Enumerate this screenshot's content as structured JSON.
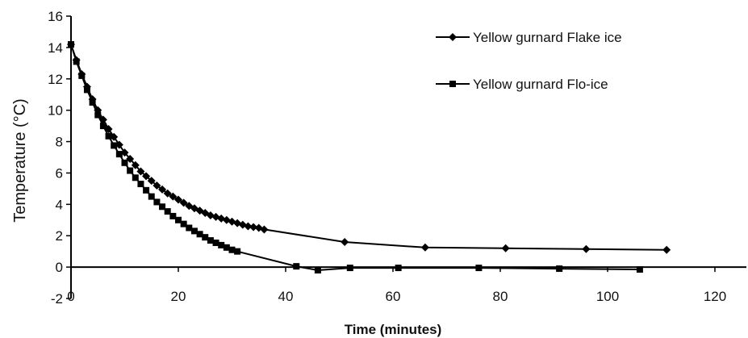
{
  "chart_data": {
    "type": "line",
    "title": "",
    "xlabel": "Time (minutes)",
    "ylabel": "Temperature (°C)",
    "xlim": [
      0,
      120
    ],
    "ylim": [
      -2,
      16
    ],
    "xticks": [
      "0",
      "20",
      "40",
      "60",
      "80",
      "100",
      "120"
    ],
    "yticks": [
      "-2",
      "0",
      "2",
      "4",
      "6",
      "8",
      "10",
      "12",
      "14",
      "16"
    ],
    "grid": false,
    "legend_position": "top-right",
    "series": [
      {
        "name": "Yellow gurnard Flake ice",
        "marker": "diamond",
        "color": "#000000",
        "x": [
          0,
          1,
          2,
          3,
          4,
          5,
          6,
          7,
          8,
          9,
          10,
          11,
          12,
          13,
          14,
          15,
          16,
          17,
          18,
          19,
          20,
          21,
          22,
          23,
          24,
          25,
          26,
          27,
          28,
          29,
          30,
          31,
          32,
          33,
          34,
          35,
          36,
          51,
          66,
          81,
          96,
          111
        ],
        "y": [
          14.2,
          13.2,
          12.3,
          11.5,
          10.7,
          10.0,
          9.4,
          8.8,
          8.3,
          7.8,
          7.3,
          6.9,
          6.5,
          6.1,
          5.8,
          5.5,
          5.2,
          4.95,
          4.7,
          4.5,
          4.3,
          4.1,
          3.9,
          3.75,
          3.6,
          3.45,
          3.3,
          3.2,
          3.1,
          3.0,
          2.9,
          2.8,
          2.7,
          2.6,
          2.55,
          2.5,
          2.4,
          1.6,
          1.25,
          1.2,
          1.15,
          1.1
        ]
      },
      {
        "name": "Yellow gurnard Flo-ice",
        "marker": "square",
        "color": "#000000",
        "x": [
          0,
          1,
          2,
          3,
          4,
          5,
          6,
          7,
          8,
          9,
          10,
          11,
          12,
          13,
          14,
          15,
          16,
          17,
          18,
          19,
          20,
          21,
          22,
          23,
          24,
          25,
          26,
          27,
          28,
          29,
          30,
          31,
          42,
          46,
          52,
          61,
          76,
          91,
          106
        ],
        "y": [
          14.2,
          13.1,
          12.2,
          11.3,
          10.5,
          9.7,
          9.0,
          8.35,
          7.75,
          7.2,
          6.65,
          6.15,
          5.7,
          5.3,
          4.9,
          4.5,
          4.15,
          3.85,
          3.55,
          3.25,
          3.0,
          2.75,
          2.5,
          2.3,
          2.1,
          1.9,
          1.7,
          1.55,
          1.4,
          1.25,
          1.1,
          1.0,
          0.05,
          -0.2,
          -0.05,
          -0.05,
          -0.05,
          -0.1,
          -0.15
        ]
      }
    ]
  }
}
